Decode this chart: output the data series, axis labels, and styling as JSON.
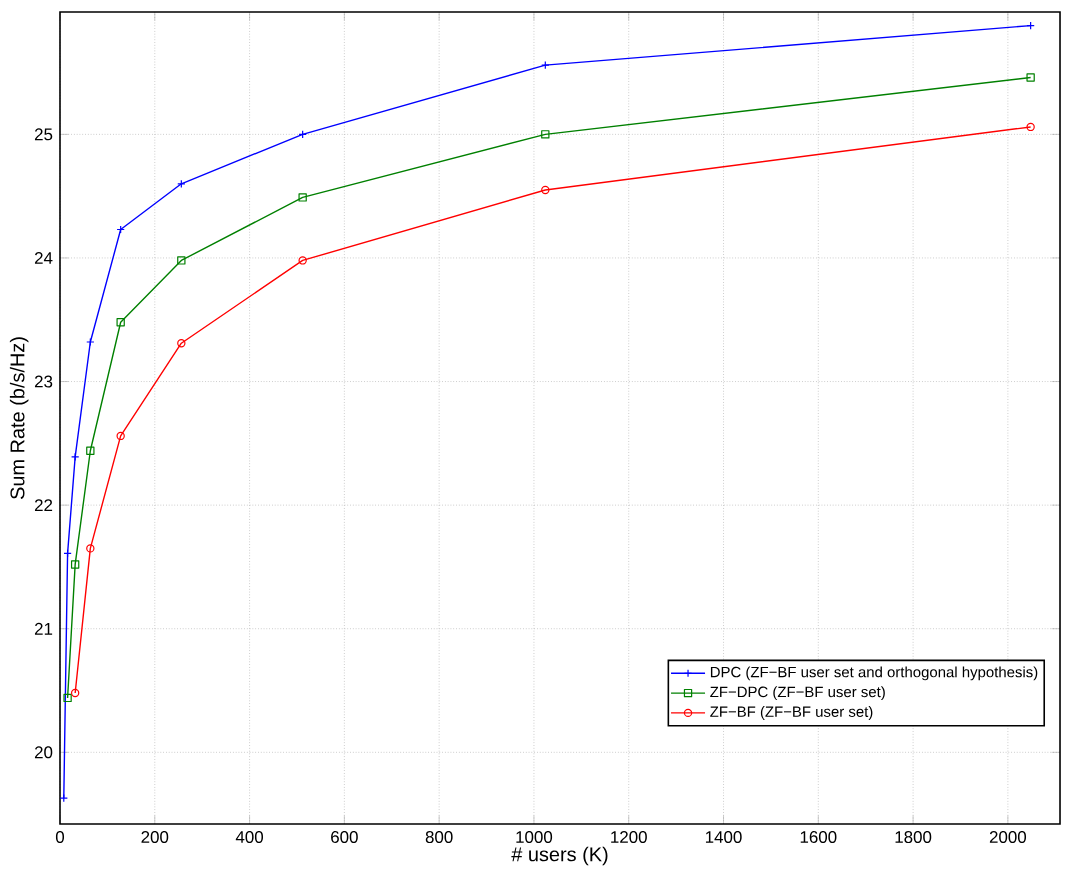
{
  "chart_data": {
    "type": "line",
    "xlabel": "# users (K)",
    "ylabel": "Sum Rate (b/s/Hz)",
    "xlim": [
      0,
      2110
    ],
    "ylim": [
      19.42,
      25.99
    ],
    "xticks": [
      0,
      200,
      400,
      600,
      800,
      1000,
      1200,
      1400,
      1600,
      1800,
      2000
    ],
    "yticks": [
      20,
      21,
      22,
      23,
      24,
      25
    ],
    "grid": true,
    "legend": "bottom right",
    "line_style": "solid",
    "series": [
      {
        "name": "DPC (ZF−BF user set and orthogonal hypothesis)",
        "color": "#0000ff",
        "marker": "cross",
        "x": [
          8,
          16,
          32,
          64,
          128,
          256,
          512,
          1024,
          2048
        ],
        "values": [
          19.63,
          21.61,
          22.39,
          23.32,
          24.23,
          24.6,
          25.0,
          25.56,
          25.88
        ]
      },
      {
        "name": "ZF−DPC (ZF−BF user set)",
        "color": "#008000",
        "marker": "square",
        "x": [
          16,
          32,
          64,
          128,
          256,
          512,
          1024,
          2048
        ],
        "values": [
          20.44,
          21.52,
          22.44,
          23.48,
          23.98,
          24.49,
          25.0,
          25.46
        ]
      },
      {
        "name": "ZF−BF (ZF−BF user set)",
        "color": "#ff0000",
        "marker": "circle",
        "x": [
          32,
          64,
          128,
          256,
          512,
          1024,
          2048
        ],
        "values": [
          20.48,
          21.65,
          22.56,
          23.31,
          23.98,
          24.55,
          25.06
        ]
      }
    ]
  }
}
